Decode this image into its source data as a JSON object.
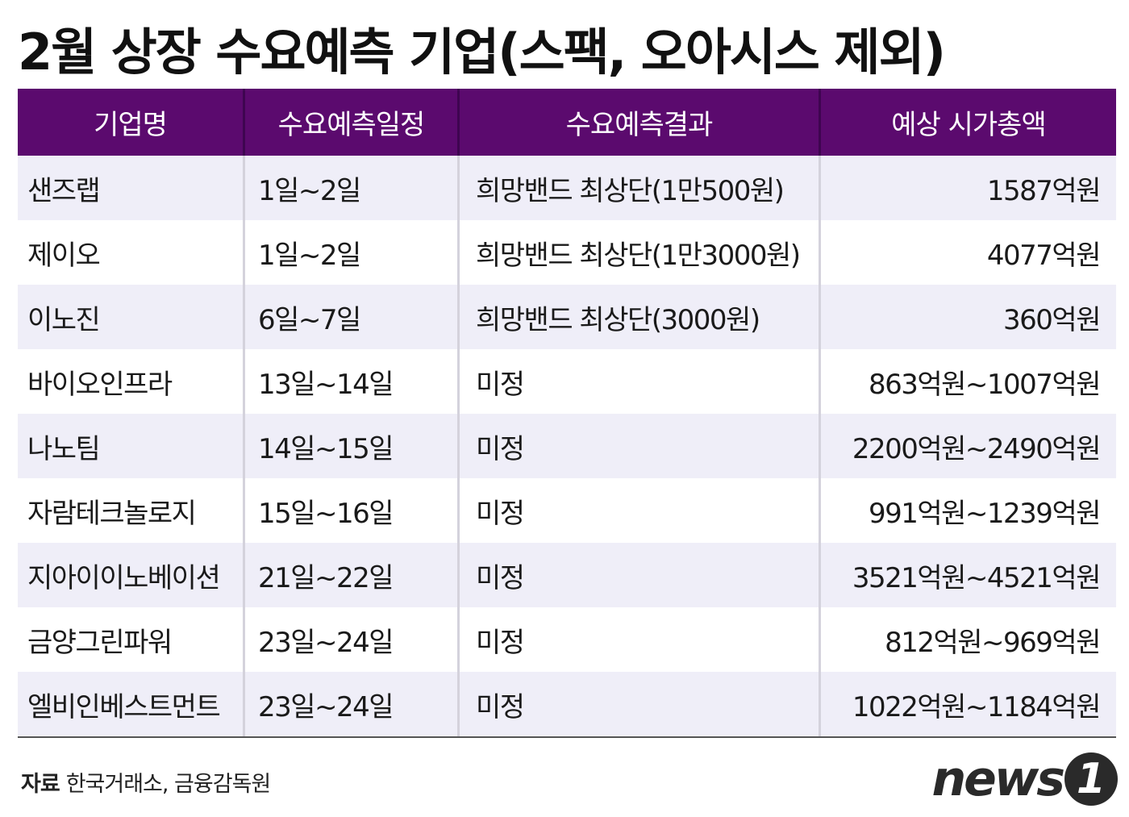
{
  "title": "2월 상장 수요예측 기업(스팩, 오아시스 제외)",
  "table": {
    "headers": [
      "기업명",
      "수요예측일정",
      "수요예측결과",
      "예상 시가총액"
    ],
    "rows": [
      [
        "샌즈랩",
        "1일~2일",
        "희망밴드 최상단(1만500원)",
        "1587억원"
      ],
      [
        "제이오",
        "1일~2일",
        "희망밴드 최상단(1만3000원)",
        "4077억원"
      ],
      [
        "이노진",
        "6일~7일",
        "희망밴드 최상단(3000원)",
        "360억원"
      ],
      [
        "바이오인프라",
        "13일~14일",
        "미정",
        "863억원~1007억원"
      ],
      [
        "나노팀",
        "14일~15일",
        "미정",
        "2200억원~2490억원"
      ],
      [
        "자람테크놀로지",
        "15일~16일",
        "미정",
        "991억원~1239억원"
      ],
      [
        "지아이이노베이션",
        "21일~22일",
        "미정",
        "3521억원~4521억원"
      ],
      [
        "금양그린파워",
        "23일~24일",
        "미정",
        "812억원~969억원"
      ],
      [
        "엘비인베스트먼트",
        "23일~24일",
        "미정",
        "1022억원~1184억원"
      ]
    ]
  },
  "footer": {
    "label": "자료",
    "source": "한국거래소, 금융감독원"
  },
  "logo": {
    "text": "news",
    "badge": "1"
  },
  "colors": {
    "header_bg": "#5b0a6e",
    "row_alt_bg": "#efeef8"
  }
}
